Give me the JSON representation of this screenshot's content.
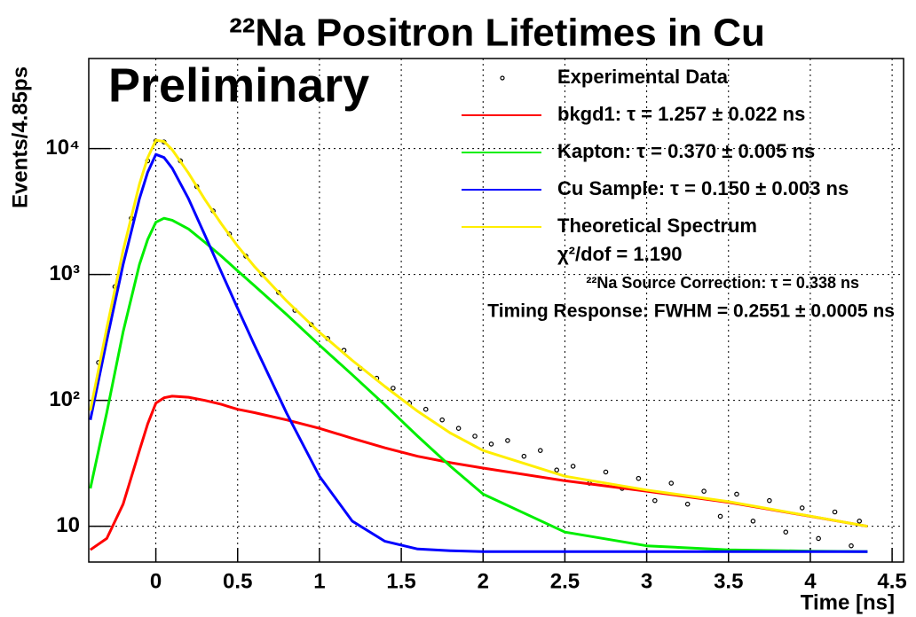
{
  "chart_data": {
    "type": "line",
    "title": "²²Na Positron Lifetimes in Cu",
    "y_label": "Events/4.85ps",
    "x_label": "Time [ns]",
    "annotations": [
      "Preliminary",
      "χ²/dof = 1.190",
      "²²Na Source Correction: τ = 0.338 ns",
      "Timing Response: FWHM = 0.2551 ± 0.0005 ns"
    ],
    "log_y": true,
    "grid": true,
    "xlim": [
      -0.41,
      4.57
    ],
    "ylim": [
      5.2,
      52000
    ],
    "xticks": [
      0,
      0.5,
      1,
      1.5,
      2,
      2.5,
      3,
      3.5,
      4,
      4.5
    ],
    "yticks": [
      10,
      {
        "value": 100,
        "label": "10²"
      },
      {
        "value": 1000,
        "label": "10³"
      },
      {
        "value": 10000,
        "label": "10⁴"
      }
    ],
    "x": [
      -0.4,
      -0.3,
      -0.2,
      -0.1,
      -0.05,
      0,
      0.05,
      0.1,
      0.2,
      0.3,
      0.4,
      0.5,
      0.6,
      0.8,
      1.0,
      1.2,
      1.4,
      1.6,
      1.8,
      2.0,
      2.5,
      3.0,
      3.5,
      4.0,
      4.35
    ],
    "series": [
      {
        "name": "Experimental Data",
        "color": "#000000",
        "marker": "points",
        "x": [
          -0.35,
          -0.25,
          -0.15,
          -0.05,
          0,
          0.05,
          0.15,
          0.25,
          0.35,
          0.45,
          0.55,
          0.65,
          0.75,
          0.85,
          0.95,
          1.05,
          1.15,
          1.25,
          1.35,
          1.45,
          1.55,
          1.65,
          1.75,
          1.85,
          1.95,
          2.05,
          2.15,
          2.25,
          2.35,
          2.45,
          2.55,
          2.65,
          2.75,
          2.85,
          2.95,
          3.05,
          3.15,
          3.25,
          3.35,
          3.45,
          3.55,
          3.65,
          3.75,
          3.85,
          3.95,
          4.05,
          4.15,
          4.25,
          4.3
        ],
        "values": [
          200,
          800,
          2800,
          8000,
          11500,
          11300,
          8000,
          5000,
          3200,
          2100,
          1400,
          1000,
          720,
          520,
          400,
          310,
          250,
          180,
          150,
          125,
          95,
          85,
          70,
          60,
          52,
          45,
          48,
          36,
          40,
          28,
          30,
          22,
          27,
          20,
          24,
          16,
          22,
          15,
          19,
          12,
          18,
          11,
          16,
          9,
          14,
          8,
          13,
          7,
          11
        ]
      },
      {
        "name": "bkgd1: τ = 1.257 ± 0.022 ns",
        "color": "#ff0000",
        "values": [
          6.5,
          8,
          15,
          40,
          65,
          95,
          105,
          108,
          106,
          100,
          93,
          85,
          80,
          70,
          60,
          50,
          42,
          36,
          32,
          29,
          23,
          19,
          15.5,
          12,
          10
        ]
      },
      {
        "name": "Kapton: τ = 0.370 ± 0.005 ns",
        "color": "#00ee00",
        "values": [
          20,
          80,
          350,
          1200,
          1900,
          2600,
          2800,
          2700,
          2300,
          1800,
          1400,
          1070,
          820,
          480,
          275,
          160,
          92,
          52,
          30,
          18,
          9,
          7,
          6.5,
          6.35,
          6.3
        ]
      },
      {
        "name": "Cu Sample: τ = 0.150 ± 0.003 ns",
        "color": "#0000ff",
        "values": [
          70,
          300,
          1200,
          4000,
          6500,
          9000,
          8500,
          7000,
          4000,
          2050,
          1050,
          540,
          280,
          79,
          25,
          11,
          7.6,
          6.6,
          6.4,
          6.3,
          6.3,
          6.3,
          6.3,
          6.3,
          6.3
        ]
      },
      {
        "name": "Theoretical Spectrum",
        "color": "#ffee00",
        "values": [
          83,
          375,
          1552,
          5227,
          8452,
          11682,
          11392,
          9795,
          6393,
          3937,
          2530,
          1682,
          1167,
          616,
          347,
          208,
          129,
          82,
          55,
          40,
          25,
          19.4,
          15.7,
          12.05,
          10
        ]
      }
    ]
  }
}
